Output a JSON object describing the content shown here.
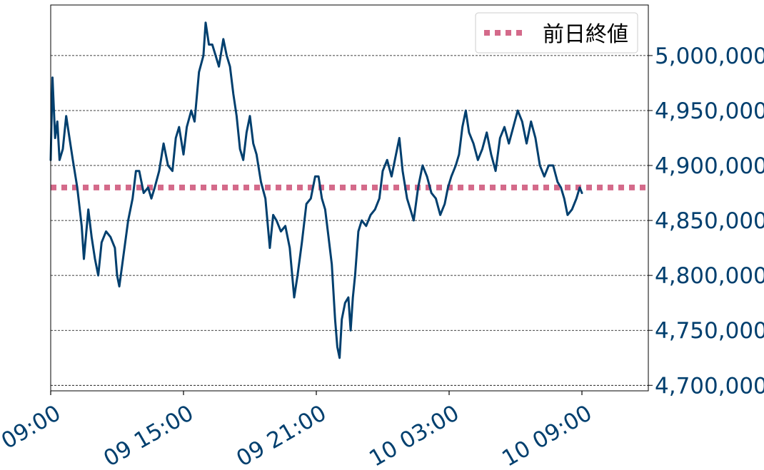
{
  "chart_data": {
    "type": "line",
    "x_range": [
      "09 09:00",
      "10 11:00"
    ],
    "ylim": [
      4695000,
      5046000
    ],
    "grid": "horizontal dashed",
    "legend_placement": "top-right",
    "yaxis_position": "right",
    "xticks": [
      {
        "label": "09 09:00",
        "hours": 0
      },
      {
        "label": "09 15:00",
        "hours": 6
      },
      {
        "label": "09 21:00",
        "hours": 12
      },
      {
        "label": "10 03:00",
        "hours": 18
      },
      {
        "label": "10 09:00",
        "hours": 24
      }
    ],
    "yticks": [
      {
        "label": "4,700,000",
        "value": 4700000
      },
      {
        "label": "4,750,000",
        "value": 4750000
      },
      {
        "label": "4,800,000",
        "value": 4800000
      },
      {
        "label": "4,850,000",
        "value": 4850000
      },
      {
        "label": "4,900,000",
        "value": 4900000
      },
      {
        "label": "4,950,000",
        "value": 4950000
      },
      {
        "label": "5,000,000",
        "value": 5000000
      }
    ],
    "series": [
      {
        "color": "#003f6e",
        "points": [
          [
            0.0,
            4905000
          ],
          [
            0.08,
            4980000
          ],
          [
            0.2,
            4925000
          ],
          [
            0.3,
            4940000
          ],
          [
            0.4,
            4905000
          ],
          [
            0.55,
            4915000
          ],
          [
            0.7,
            4945000
          ],
          [
            0.85,
            4925000
          ],
          [
            1.0,
            4905000
          ],
          [
            1.2,
            4880000
          ],
          [
            1.4,
            4845000
          ],
          [
            1.5,
            4815000
          ],
          [
            1.7,
            4860000
          ],
          [
            1.85,
            4835000
          ],
          [
            2.0,
            4815000
          ],
          [
            2.15,
            4800000
          ],
          [
            2.3,
            4830000
          ],
          [
            2.5,
            4840000
          ],
          [
            2.7,
            4835000
          ],
          [
            2.9,
            4825000
          ],
          [
            3.0,
            4800000
          ],
          [
            3.1,
            4790000
          ],
          [
            3.3,
            4820000
          ],
          [
            3.5,
            4850000
          ],
          [
            3.7,
            4870000
          ],
          [
            3.85,
            4895000
          ],
          [
            4.0,
            4895000
          ],
          [
            4.2,
            4875000
          ],
          [
            4.4,
            4880000
          ],
          [
            4.55,
            4870000
          ],
          [
            4.7,
            4880000
          ],
          [
            4.9,
            4895000
          ],
          [
            5.1,
            4920000
          ],
          [
            5.3,
            4900000
          ],
          [
            5.5,
            4895000
          ],
          [
            5.65,
            4925000
          ],
          [
            5.8,
            4935000
          ],
          [
            6.0,
            4910000
          ],
          [
            6.15,
            4935000
          ],
          [
            6.35,
            4950000
          ],
          [
            6.5,
            4940000
          ],
          [
            6.7,
            4985000
          ],
          [
            6.9,
            5000000
          ],
          [
            7.0,
            5030000
          ],
          [
            7.15,
            5010000
          ],
          [
            7.3,
            5010000
          ],
          [
            7.45,
            5000000
          ],
          [
            7.6,
            4990000
          ],
          [
            7.8,
            5015000
          ],
          [
            7.95,
            5000000
          ],
          [
            8.1,
            4990000
          ],
          [
            8.25,
            4965000
          ],
          [
            8.4,
            4945000
          ],
          [
            8.55,
            4915000
          ],
          [
            8.7,
            4905000
          ],
          [
            8.85,
            4930000
          ],
          [
            9.0,
            4945000
          ],
          [
            9.15,
            4920000
          ],
          [
            9.3,
            4910000
          ],
          [
            9.5,
            4885000
          ],
          [
            9.7,
            4870000
          ],
          [
            9.9,
            4825000
          ],
          [
            10.05,
            4855000
          ],
          [
            10.2,
            4850000
          ],
          [
            10.4,
            4840000
          ],
          [
            10.6,
            4845000
          ],
          [
            10.8,
            4825000
          ],
          [
            11.0,
            4780000
          ],
          [
            11.15,
            4800000
          ],
          [
            11.35,
            4830000
          ],
          [
            11.55,
            4865000
          ],
          [
            11.75,
            4870000
          ],
          [
            11.95,
            4890000
          ],
          [
            12.1,
            4890000
          ],
          [
            12.25,
            4870000
          ],
          [
            12.4,
            4860000
          ],
          [
            12.55,
            4835000
          ],
          [
            12.7,
            4810000
          ],
          [
            12.85,
            4760000
          ],
          [
            12.95,
            4735000
          ],
          [
            13.05,
            4725000
          ],
          [
            13.15,
            4760000
          ],
          [
            13.3,
            4775000
          ],
          [
            13.45,
            4780000
          ],
          [
            13.55,
            4750000
          ],
          [
            13.65,
            4780000
          ],
          [
            13.75,
            4800000
          ],
          [
            13.9,
            4840000
          ],
          [
            14.05,
            4850000
          ],
          [
            14.25,
            4845000
          ],
          [
            14.45,
            4855000
          ],
          [
            14.65,
            4860000
          ],
          [
            14.85,
            4870000
          ],
          [
            15.0,
            4895000
          ],
          [
            15.2,
            4905000
          ],
          [
            15.4,
            4890000
          ],
          [
            15.6,
            4910000
          ],
          [
            15.75,
            4925000
          ],
          [
            15.9,
            4895000
          ],
          [
            16.1,
            4870000
          ],
          [
            16.25,
            4860000
          ],
          [
            16.4,
            4850000
          ],
          [
            16.6,
            4880000
          ],
          [
            16.8,
            4900000
          ],
          [
            17.0,
            4890000
          ],
          [
            17.2,
            4875000
          ],
          [
            17.4,
            4870000
          ],
          [
            17.6,
            4855000
          ],
          [
            17.8,
            4865000
          ],
          [
            17.95,
            4880000
          ],
          [
            18.1,
            4890000
          ],
          [
            18.3,
            4900000
          ],
          [
            18.45,
            4910000
          ],
          [
            18.6,
            4935000
          ],
          [
            18.75,
            4950000
          ],
          [
            18.9,
            4930000
          ],
          [
            19.1,
            4920000
          ],
          [
            19.3,
            4905000
          ],
          [
            19.5,
            4915000
          ],
          [
            19.7,
            4930000
          ],
          [
            19.9,
            4910000
          ],
          [
            20.1,
            4895000
          ],
          [
            20.3,
            4925000
          ],
          [
            20.5,
            4935000
          ],
          [
            20.7,
            4920000
          ],
          [
            20.9,
            4935000
          ],
          [
            21.1,
            4950000
          ],
          [
            21.3,
            4940000
          ],
          [
            21.5,
            4920000
          ],
          [
            21.7,
            4940000
          ],
          [
            21.9,
            4925000
          ],
          [
            22.1,
            4900000
          ],
          [
            22.3,
            4890000
          ],
          [
            22.5,
            4900000
          ],
          [
            22.7,
            4900000
          ],
          [
            22.9,
            4885000
          ],
          [
            23.05,
            4880000
          ],
          [
            23.2,
            4870000
          ],
          [
            23.35,
            4855000
          ],
          [
            23.55,
            4860000
          ],
          [
            23.75,
            4870000
          ],
          [
            23.9,
            4880000
          ],
          [
            24.0,
            4875000
          ]
        ]
      }
    ],
    "reference_line": {
      "label": "前日終値",
      "value": 4880000,
      "color": "#d46a8a",
      "style": "dotted"
    }
  }
}
